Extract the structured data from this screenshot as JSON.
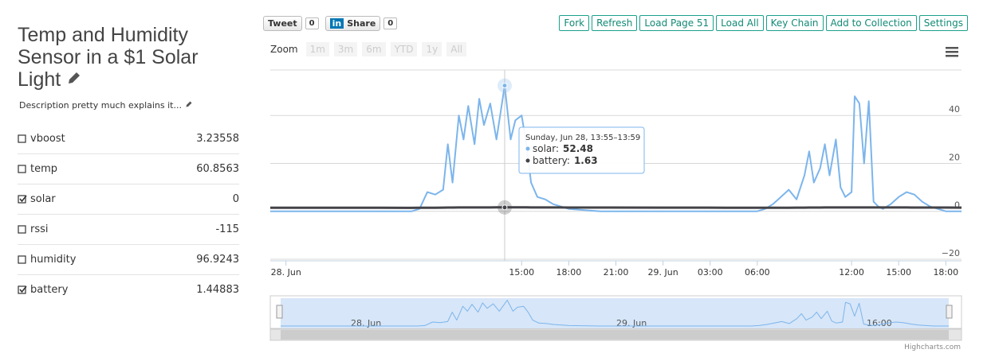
{
  "page": {
    "title": "Temp and Humidity Sensor in a $1 Solar Light",
    "description": "Description pretty much explains it...",
    "fields": [
      {
        "name": "vboost",
        "checked": false,
        "value": 3.23558
      },
      {
        "name": "temp",
        "checked": false,
        "value": 60.8563
      },
      {
        "name": "solar",
        "checked": true,
        "value": 0
      },
      {
        "name": "rssi",
        "checked": false,
        "value": -115
      },
      {
        "name": "humidity",
        "checked": false,
        "value": 96.9243
      },
      {
        "name": "battery",
        "checked": true,
        "value": 1.44883
      }
    ],
    "social": {
      "tweet": "Tweet",
      "tweet_count": 0,
      "share": "Share",
      "share_count": 0
    },
    "toolbar": [
      "Fork",
      "Refresh",
      "Load Page 51",
      "Load All",
      "Key Chain",
      "Add to Collection",
      "Settings"
    ],
    "zoom": {
      "label": "Zoom",
      "buttons": [
        "1m",
        "3m",
        "6m",
        "YTD",
        "1y",
        "All"
      ]
    },
    "navigator_labels": [
      "28. Jun",
      "29. Jun",
      "16:00"
    ],
    "credits": "Highcharts.com"
  },
  "chart_data": {
    "type": "line",
    "x": [
      -1,
      0,
      2,
      4,
      6,
      8,
      8.5,
      9,
      9.5,
      10,
      10.3,
      10.6,
      11,
      11.3,
      11.6,
      12,
      12.3,
      12.6,
      13,
      13.4,
      13.92,
      14.3,
      14.6,
      15,
      15.3,
      15.6,
      16,
      16.5,
      17,
      17.5,
      18,
      20,
      24,
      28,
      30,
      30.5,
      31,
      31.5,
      32,
      32.5,
      33,
      33.3,
      33.6,
      34,
      34.3,
      34.6,
      35,
      35.3,
      35.6,
      36,
      36.2,
      36.5,
      36.8,
      37.1,
      37.4,
      37.7,
      38,
      38.5,
      39,
      39.5,
      40,
      40.5,
      41,
      41.5,
      42,
      43
    ],
    "series": [
      {
        "name": "solar",
        "color": "#7cb5ec",
        "values": [
          0,
          0,
          0,
          0,
          0,
          0,
          1,
          8,
          7,
          9,
          28,
          12,
          40,
          30,
          44,
          28,
          47,
          36,
          45,
          30,
          52.48,
          30,
          38,
          40,
          28,
          12,
          6,
          5,
          3,
          2,
          1,
          0,
          0,
          0,
          0,
          1,
          3,
          6,
          9,
          5,
          15,
          25,
          12,
          18,
          28,
          15,
          30,
          10,
          6,
          8,
          48,
          45,
          20,
          46,
          4,
          2,
          1,
          3,
          6,
          8,
          7,
          4,
          2,
          1,
          0,
          0
        ]
      },
      {
        "name": "battery",
        "color": "#434348",
        "values": [
          1.5,
          1.5,
          1.48,
          1.47,
          1.46,
          1.45,
          1.46,
          1.5,
          1.52,
          1.55,
          1.57,
          1.58,
          1.6,
          1.6,
          1.61,
          1.61,
          1.62,
          1.62,
          1.62,
          1.63,
          1.63,
          1.63,
          1.63,
          1.63,
          1.63,
          1.62,
          1.62,
          1.61,
          1.6,
          1.6,
          1.59,
          1.57,
          1.54,
          1.5,
          1.48,
          1.48,
          1.49,
          1.5,
          1.52,
          1.53,
          1.55,
          1.57,
          1.58,
          1.59,
          1.6,
          1.6,
          1.61,
          1.61,
          1.61,
          1.62,
          1.62,
          1.62,
          1.62,
          1.62,
          1.62,
          1.61,
          1.61,
          1.6,
          1.6,
          1.6,
          1.59,
          1.59,
          1.58,
          1.57,
          1.56,
          1.55
        ]
      }
    ],
    "xlim": [
      -1,
      43
    ],
    "xticks": [
      {
        "value": 0,
        "label": "28. Jun"
      },
      {
        "value": 15,
        "label": "15:00"
      },
      {
        "value": 18,
        "label": "18:00"
      },
      {
        "value": 21,
        "label": "21:00"
      },
      {
        "value": 24,
        "label": "29. Jun"
      },
      {
        "value": 27,
        "label": "03:00"
      },
      {
        "value": 30,
        "label": "06:00"
      },
      {
        "value": 36,
        "label": "12:00"
      },
      {
        "value": 39,
        "label": "15:00"
      },
      {
        "value": 42,
        "label": "18:00"
      }
    ],
    "ylim": [
      -20,
      59
    ],
    "yticks": [
      {
        "value": -20,
        "label": "−20"
      },
      0,
      20,
      40
    ],
    "grid": true,
    "tooltip": {
      "header": "Sunday, Jun 28, 13:55–13:59",
      "labels": [
        "solar:",
        "battery:"
      ]
    }
  }
}
